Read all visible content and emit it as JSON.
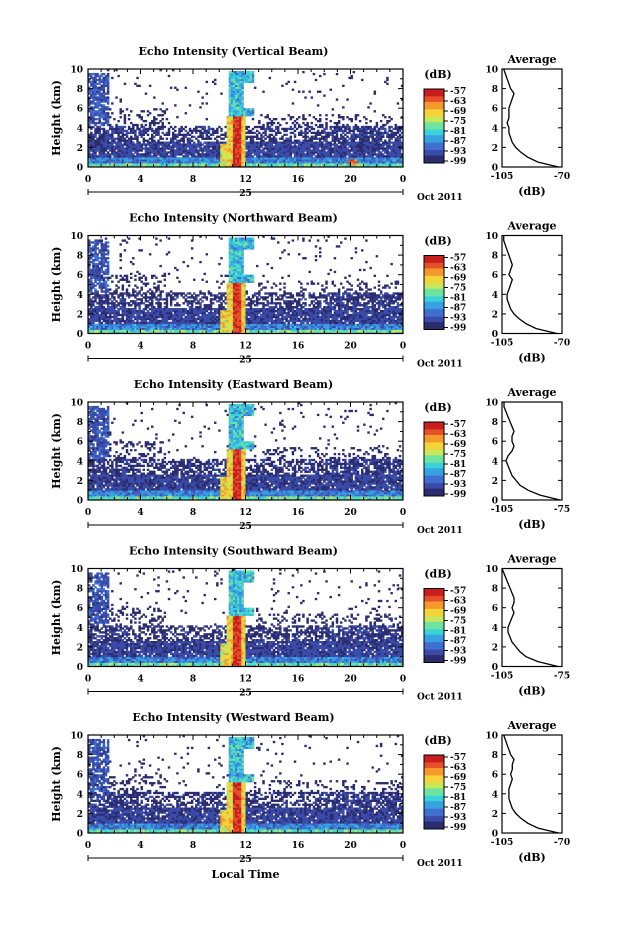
{
  "figure": {
    "x_label": "Local Time",
    "date_label": "Oct 2011",
    "day_label": "25",
    "avg_title": "Average",
    "avg_xlabel": "(dB)",
    "cbar_title": "(dB)",
    "colors": {
      "palette": [
        "#2b2c6e",
        "#3a4ba8",
        "#3f6fd0",
        "#36a2e2",
        "#39d2d8",
        "#6fe3a0",
        "#c6e85a",
        "#f5d33a",
        "#f59a2a",
        "#e5502a",
        "#c81e1e"
      ]
    }
  },
  "chart_data": [
    {
      "type": "heatmap",
      "title": "Echo Intensity (Vertical Beam)",
      "ylabel": "Height (km)",
      "x_ticks": [
        "0",
        "4",
        "8",
        "12",
        "16",
        "20",
        "0"
      ],
      "y_ticks": [
        "0",
        "2",
        "4",
        "6",
        "8",
        "10"
      ],
      "xlim": [
        0,
        24
      ],
      "ylim": [
        0,
        10
      ],
      "colorbar": {
        "title": "(dB)",
        "ticks": [
          "-57",
          "-63",
          "-69",
          "-75",
          "-81",
          "-87",
          "-93",
          "-99"
        ],
        "range": [
          -99,
          -57
        ]
      },
      "average_profile": {
        "type": "line",
        "title": "Average",
        "xlabel": "(dB)",
        "x_ticks": [
          "-105",
          "-70"
        ],
        "xlim": [
          -105,
          -70
        ],
        "y_ticks": [
          "0",
          "2",
          "4",
          "6",
          "8",
          "10"
        ],
        "ylim": [
          0,
          10
        ],
        "height_km": [
          0,
          0.5,
          1,
          1.5,
          2,
          2.5,
          3,
          3.5,
          4,
          4.5,
          5,
          5.5,
          6,
          6.5,
          7,
          7.5,
          8,
          8.5,
          9,
          9.5,
          10
        ],
        "values_db": [
          -72,
          -84,
          -90,
          -94,
          -97,
          -99,
          -100,
          -101,
          -101,
          -102,
          -101,
          -101,
          -101,
          -100,
          -99,
          -98,
          -100,
          -101,
          -102,
          -103,
          -104
        ]
      }
    },
    {
      "type": "heatmap",
      "title": "Echo Intensity (Northward Beam)",
      "ylabel": "Height (km)",
      "x_ticks": [
        "0",
        "4",
        "8",
        "12",
        "16",
        "20",
        "0"
      ],
      "y_ticks": [
        "0",
        "2",
        "4",
        "6",
        "8",
        "10"
      ],
      "xlim": [
        0,
        24
      ],
      "ylim": [
        0,
        10
      ],
      "colorbar": {
        "title": "(dB)",
        "ticks": [
          "-57",
          "-63",
          "-69",
          "-75",
          "-81",
          "-87",
          "-93",
          "-99"
        ],
        "range": [
          -99,
          -57
        ]
      },
      "average_profile": {
        "type": "line",
        "title": "Average",
        "xlabel": "(dB)",
        "x_ticks": [
          "-105",
          "-70"
        ],
        "xlim": [
          -105,
          -70
        ],
        "y_ticks": [
          "0",
          "2",
          "4",
          "6",
          "8",
          "10"
        ],
        "ylim": [
          0,
          10
        ],
        "height_km": [
          0,
          0.5,
          1,
          1.5,
          2,
          2.5,
          3,
          3.5,
          4,
          4.5,
          5,
          5.5,
          6,
          6.5,
          7,
          7.5,
          8,
          8.5,
          9,
          9.5,
          10
        ],
        "values_db": [
          -73,
          -85,
          -91,
          -95,
          -98,
          -100,
          -101,
          -102,
          -102,
          -101,
          -100,
          -99,
          -101,
          -100,
          -99,
          -100,
          -101,
          -102,
          -103,
          -104,
          -104
        ]
      }
    },
    {
      "type": "heatmap",
      "title": "Echo Intensity (Eastward Beam)",
      "ylabel": "Height (km)",
      "x_ticks": [
        "0",
        "4",
        "8",
        "12",
        "16",
        "20",
        "0"
      ],
      "y_ticks": [
        "0",
        "2",
        "4",
        "6",
        "8",
        "10"
      ],
      "xlim": [
        0,
        24
      ],
      "ylim": [
        0,
        10
      ],
      "colorbar": {
        "title": "(dB)",
        "ticks": [
          "-57",
          "-63",
          "-69",
          "-75",
          "-81",
          "-87",
          "-93",
          "-99"
        ],
        "range": [
          -99,
          -57
        ]
      },
      "average_profile": {
        "type": "line",
        "title": "Average",
        "xlabel": "(dB)",
        "x_ticks": [
          "-105",
          "-75"
        ],
        "xlim": [
          -105,
          -75
        ],
        "y_ticks": [
          "0",
          "2",
          "4",
          "6",
          "8",
          "10"
        ],
        "ylim": [
          0,
          10
        ],
        "height_km": [
          0,
          0.5,
          1,
          1.5,
          2,
          2.5,
          3,
          3.5,
          4,
          4.5,
          5,
          5.5,
          6,
          6.5,
          7,
          7.5,
          8,
          8.5,
          9,
          9.5,
          10
        ],
        "values_db": [
          -76,
          -86,
          -92,
          -96,
          -98,
          -100,
          -101,
          -102,
          -103,
          -102,
          -100,
          -99,
          -100,
          -100,
          -99,
          -100,
          -101,
          -102,
          -103,
          -104,
          -104
        ]
      }
    },
    {
      "type": "heatmap",
      "title": "Echo Intensity (Southward Beam)",
      "ylabel": "Height (km)",
      "x_ticks": [
        "0",
        "4",
        "8",
        "12",
        "16",
        "20",
        "0"
      ],
      "y_ticks": [
        "0",
        "2",
        "4",
        "6",
        "8",
        "10"
      ],
      "xlim": [
        0,
        24
      ],
      "ylim": [
        0,
        10
      ],
      "colorbar": {
        "title": "(dB)",
        "ticks": [
          "-57",
          "-63",
          "-69",
          "-75",
          "-81",
          "-87",
          "-93",
          "-99"
        ],
        "range": [
          -99,
          -57
        ]
      },
      "average_profile": {
        "type": "line",
        "title": "Average",
        "xlabel": "(dB)",
        "x_ticks": [
          "-105",
          "-75"
        ],
        "xlim": [
          -105,
          -75
        ],
        "y_ticks": [
          "0",
          "2",
          "4",
          "6",
          "8",
          "10"
        ],
        "ylim": [
          0,
          10
        ],
        "height_km": [
          0,
          0.5,
          1,
          1.5,
          2,
          2.5,
          3,
          3.5,
          4,
          4.5,
          5,
          5.5,
          6,
          6.5,
          7,
          7.5,
          8,
          8.5,
          9,
          9.5,
          10
        ],
        "values_db": [
          -77,
          -87,
          -93,
          -96,
          -98,
          -100,
          -101,
          -102,
          -102,
          -101,
          -100,
          -99,
          -100,
          -99,
          -99,
          -100,
          -101,
          -102,
          -103,
          -104,
          -105
        ]
      }
    },
    {
      "type": "heatmap",
      "title": "Echo Intensity (Westward Beam)",
      "ylabel": "Height (km)",
      "x_ticks": [
        "0",
        "4",
        "8",
        "12",
        "16",
        "20",
        "0"
      ],
      "y_ticks": [
        "0",
        "2",
        "4",
        "6",
        "8",
        "10"
      ],
      "xlim": [
        0,
        24
      ],
      "ylim": [
        0,
        10
      ],
      "colorbar": {
        "title": "(dB)",
        "ticks": [
          "-57",
          "-63",
          "-69",
          "-75",
          "-81",
          "-87",
          "-93",
          "-99"
        ],
        "range": [
          -99,
          -57
        ]
      },
      "average_profile": {
        "type": "line",
        "title": "Average",
        "xlabel": "(dB)",
        "x_ticks": [
          "-105",
          "-70"
        ],
        "xlim": [
          -105,
          -70
        ],
        "y_ticks": [
          "0",
          "2",
          "4",
          "6",
          "8",
          "10"
        ],
        "ylim": [
          0,
          10
        ],
        "height_km": [
          0,
          0.5,
          1,
          1.5,
          2,
          2.5,
          3,
          3.5,
          4,
          4.5,
          5,
          5.5,
          6,
          6.5,
          7,
          7.5,
          8,
          8.5,
          9,
          9.5,
          10
        ],
        "values_db": [
          -72,
          -84,
          -90,
          -94,
          -97,
          -99,
          -100,
          -101,
          -101,
          -101,
          -100,
          -99,
          -100,
          -99,
          -99,
          -98,
          -100,
          -101,
          -102,
          -103,
          -104
        ]
      }
    }
  ]
}
